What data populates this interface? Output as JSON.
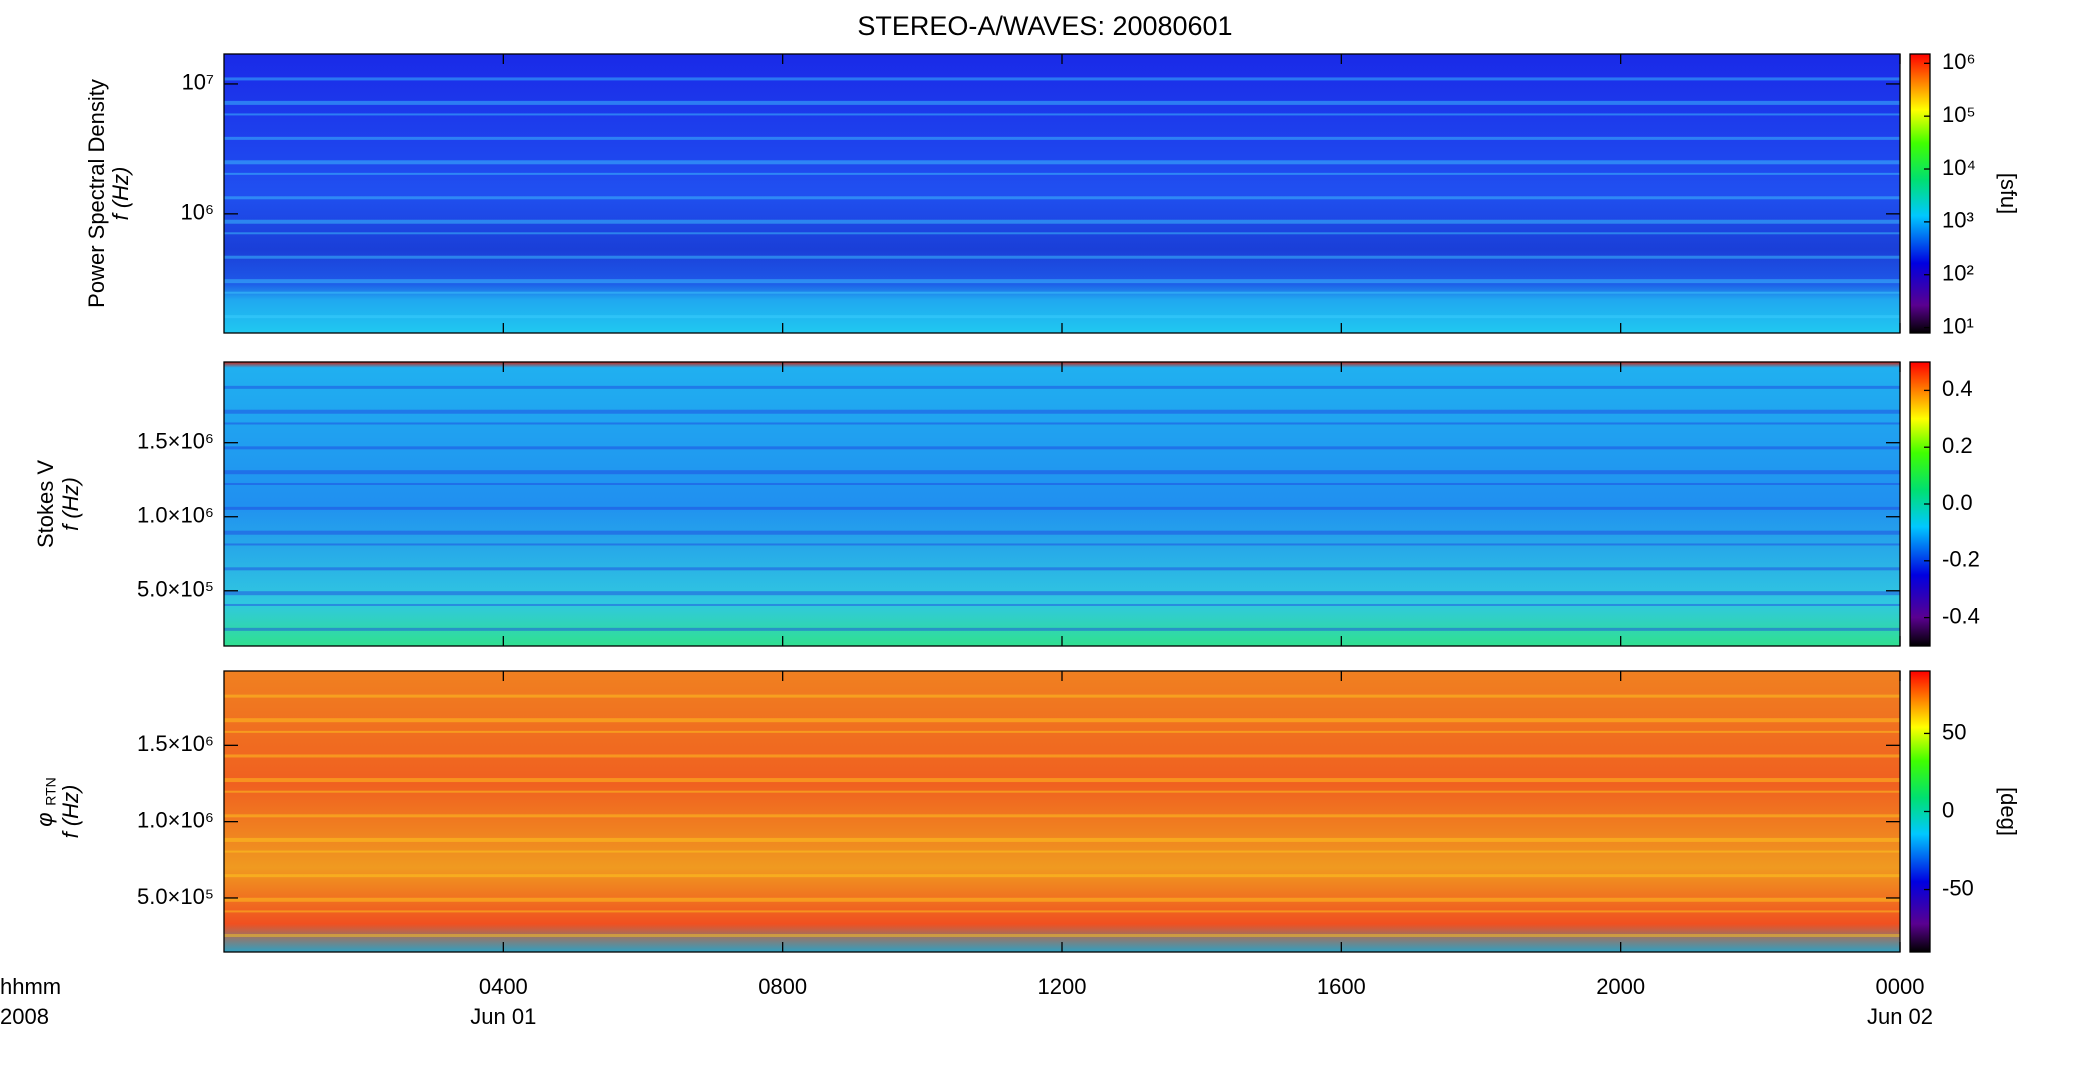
{
  "title": "STEREO-A/WAVES: 20080601",
  "xlim": [
    0,
    24
  ],
  "xticks": [
    {
      "value": 4,
      "label": "0400"
    },
    {
      "value": 8,
      "label": "0800"
    },
    {
      "value": 12,
      "label": "1200"
    },
    {
      "value": 16,
      "label": "1600"
    },
    {
      "value": 20,
      "label": "2000"
    },
    {
      "value": 24,
      "label": "0000"
    }
  ],
  "x_date_labels": [
    {
      "value": 4,
      "label": "Jun 01"
    },
    {
      "value": 24,
      "label": "Jun 02"
    }
  ],
  "x_axis_labels": [
    "hhmm",
    "2008"
  ],
  "chart_data": [
    {
      "type": "heatmap",
      "ylabel": [
        "Power Spectral Density",
        "f (Hz)"
      ],
      "ylog": true,
      "ylim": [
        121000,
        17000000
      ],
      "yticks": [
        {
          "value": 1000000,
          "label": "10⁶"
        },
        {
          "value": 10000000,
          "label": "10⁷"
        }
      ],
      "clog": true,
      "clim": [
        7.9,
        1500000
      ],
      "cticks": [
        {
          "value": 10,
          "label": "10¹"
        },
        {
          "value": 100,
          "label": "10²"
        },
        {
          "value": 1000,
          "label": "10³"
        },
        {
          "value": 10000,
          "label": "10⁴"
        },
        {
          "value": 100000,
          "label": "10⁵"
        },
        {
          "value": 1000000,
          "label": "10⁶"
        }
      ],
      "clabel": "[sfu]"
    },
    {
      "type": "heatmap",
      "ylabel": [
        "Stokes V",
        "f (Hz)"
      ],
      "ylog": false,
      "ylim": [
        127000,
        2045000
      ],
      "yticks": [
        {
          "value": 500000,
          "label": "5.0×10⁵"
        },
        {
          "value": 1000000,
          "label": "1.0×10⁶"
        },
        {
          "value": 1500000,
          "label": "1.5×10⁶"
        }
      ],
      "clog": false,
      "clim": [
        -0.5,
        0.5
      ],
      "cticks": [
        0.4,
        0.2,
        {
          "value": 0,
          "label": "0.0"
        },
        -0.2,
        -0.4
      ]
    },
    {
      "type": "heatmap",
      "ylabel": [
        "φ",
        "RTN",
        "f (Hz)"
      ],
      "ylog": false,
      "ylim": [
        146000,
        1987000
      ],
      "yticks": [
        {
          "value": 500000,
          "label": "5.0×10⁵"
        },
        {
          "value": 1000000,
          "label": "1.0×10⁶"
        },
        {
          "value": 1500000,
          "label": "1.5×10⁶"
        }
      ],
      "clog": false,
      "clim": [
        -90,
        90
      ],
      "cticks": [
        50,
        0,
        -50
      ],
      "clabel": "[deg]"
    }
  ]
}
